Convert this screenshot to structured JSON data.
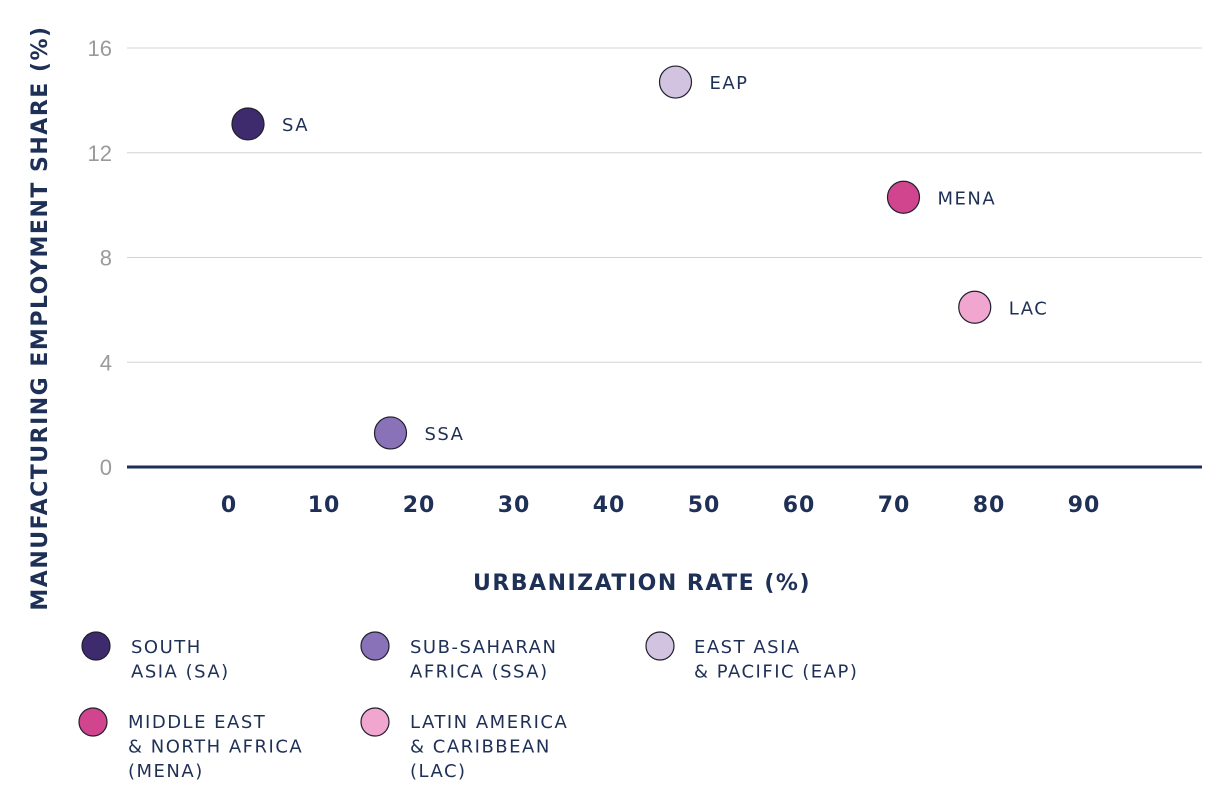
{
  "chart_data": {
    "type": "scatter",
    "title": "",
    "xlabel": "URBANIZATION RATE (%)",
    "ylabel": "MANUFACTURING EMPLOYMENT SHARE (%)",
    "xlim": [
      -10,
      103
    ],
    "ylim": [
      0,
      16
    ],
    "xticks": [
      0,
      10,
      20,
      30,
      40,
      50,
      60,
      70,
      80,
      90
    ],
    "yticks": [
      0,
      4,
      8,
      12,
      16
    ],
    "grid": "horizontal",
    "legend_position": "bottom",
    "colors": {
      "axis": "#1f3057",
      "grid": "#d4d4d4",
      "text": "#1f3057",
      "tick": "#9a9a9a"
    },
    "series": [
      {
        "id": "sa",
        "label": "SA",
        "legend": [
          "SOUTH",
          "ASIA (SA)"
        ],
        "x": 2,
        "y": 13.1,
        "color": "#3d2b6e"
      },
      {
        "id": "ssa",
        "label": "SSA",
        "legend": [
          "SUB-SAHARAN",
          "AFRICA (SSA)"
        ],
        "x": 17,
        "y": 1.3,
        "color": "#8a72b8"
      },
      {
        "id": "eap",
        "label": "EAP",
        "legend": [
          "EAST ASIA",
          "& PACIFIC (EAP)"
        ],
        "x": 47,
        "y": 14.7,
        "color": "#d2c4e0"
      },
      {
        "id": "mena",
        "label": "MENA",
        "legend": [
          "MIDDLE EAST",
          "& NORTH AFRICA",
          "(MENA)"
        ],
        "x": 71,
        "y": 10.3,
        "color": "#d1458e"
      },
      {
        "id": "lac",
        "label": "LAC",
        "legend": [
          "LATIN AMERICA",
          "& CARIBBEAN",
          "(LAC)"
        ],
        "x": 78.5,
        "y": 6.1,
        "color": "#f0a6ce"
      }
    ]
  }
}
